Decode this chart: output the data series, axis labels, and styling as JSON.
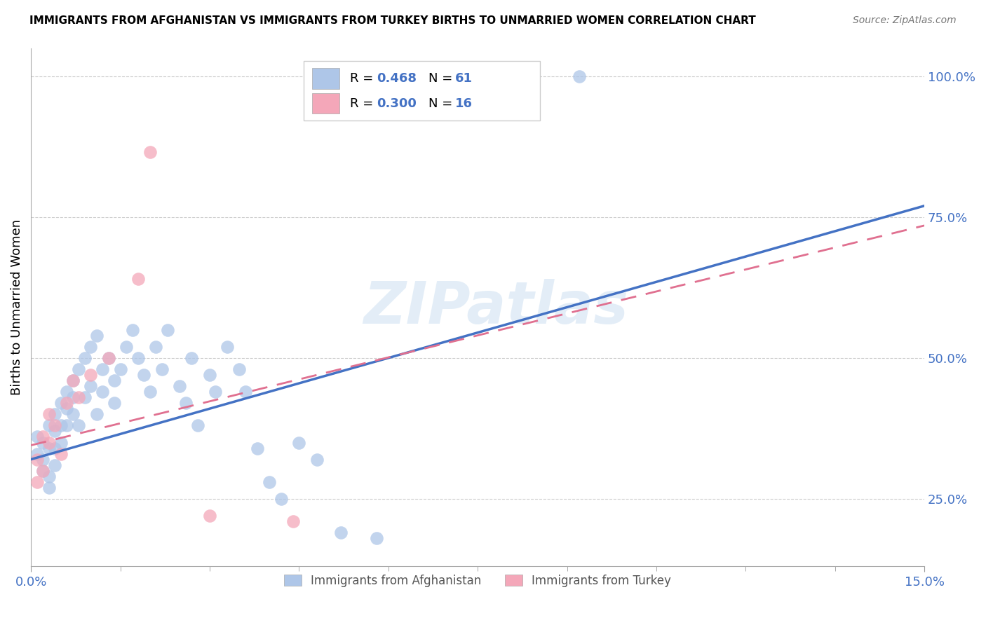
{
  "title": "IMMIGRANTS FROM AFGHANISTAN VS IMMIGRANTS FROM TURKEY BIRTHS TO UNMARRIED WOMEN CORRELATION CHART",
  "source": "Source: ZipAtlas.com",
  "ylabel": "Births to Unmarried Women",
  "x_min": 0.0,
  "x_max": 0.15,
  "y_min": 0.13,
  "y_max": 1.05,
  "y_ticks": [
    0.25,
    0.5,
    0.75,
    1.0
  ],
  "y_tick_labels": [
    "25.0%",
    "50.0%",
    "75.0%",
    "100.0%"
  ],
  "afghanistan_color": "#aec6e8",
  "turkey_color": "#f4a7b9",
  "afghanistan_line_color": "#4472C4",
  "turkey_line_color": "#E07090",
  "afghanistan_R": 0.468,
  "afghanistan_N": 61,
  "turkey_R": 0.3,
  "turkey_N": 16,
  "reg_afg_slope": 3.0,
  "reg_afg_intercept": 0.32,
  "reg_tur_slope": 2.6,
  "reg_tur_intercept": 0.345,
  "watermark_text": "ZIPatlas",
  "afghanistan_x": [
    0.001,
    0.001,
    0.002,
    0.002,
    0.002,
    0.003,
    0.003,
    0.003,
    0.003,
    0.004,
    0.004,
    0.004,
    0.004,
    0.005,
    0.005,
    0.005,
    0.006,
    0.006,
    0.006,
    0.007,
    0.007,
    0.007,
    0.008,
    0.008,
    0.009,
    0.009,
    0.01,
    0.01,
    0.011,
    0.011,
    0.012,
    0.012,
    0.013,
    0.014,
    0.014,
    0.015,
    0.016,
    0.017,
    0.018,
    0.019,
    0.02,
    0.021,
    0.022,
    0.023,
    0.025,
    0.026,
    0.027,
    0.028,
    0.03,
    0.031,
    0.033,
    0.035,
    0.036,
    0.038,
    0.04,
    0.042,
    0.045,
    0.048,
    0.052,
    0.058,
    0.092
  ],
  "afghanistan_y": [
    0.36,
    0.33,
    0.3,
    0.35,
    0.32,
    0.38,
    0.34,
    0.29,
    0.27,
    0.4,
    0.37,
    0.34,
    0.31,
    0.42,
    0.38,
    0.35,
    0.44,
    0.41,
    0.38,
    0.46,
    0.43,
    0.4,
    0.48,
    0.38,
    0.5,
    0.43,
    0.52,
    0.45,
    0.54,
    0.4,
    0.48,
    0.44,
    0.5,
    0.46,
    0.42,
    0.48,
    0.52,
    0.55,
    0.5,
    0.47,
    0.44,
    0.52,
    0.48,
    0.55,
    0.45,
    0.42,
    0.5,
    0.38,
    0.47,
    0.44,
    0.52,
    0.48,
    0.44,
    0.34,
    0.28,
    0.25,
    0.35,
    0.32,
    0.19,
    0.18,
    1.0
  ],
  "turkey_x": [
    0.001,
    0.001,
    0.002,
    0.002,
    0.003,
    0.003,
    0.004,
    0.005,
    0.006,
    0.007,
    0.008,
    0.01,
    0.013,
    0.018,
    0.03,
    0.044
  ],
  "turkey_y": [
    0.32,
    0.28,
    0.36,
    0.3,
    0.4,
    0.35,
    0.38,
    0.33,
    0.42,
    0.46,
    0.43,
    0.47,
    0.5,
    0.64,
    0.22,
    0.21
  ]
}
